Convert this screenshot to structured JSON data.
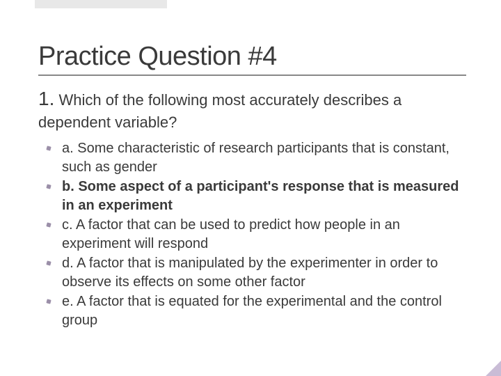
{
  "slide": {
    "title": "Practice Question #4",
    "question_number": "1.",
    "question_text": " Which of the following most accurately describes a dependent variable?",
    "options": [
      {
        "label": "a.",
        "text": " Some characteristic of research participants that is constant, such as gender",
        "bold": false
      },
      {
        "label": "b.",
        "text": " Some aspect of a participant's response that is measured in an experiment",
        "bold": true
      },
      {
        "label": "c.",
        "text": " A factor that can be used to predict how people in an experiment will respond",
        "bold": false
      },
      {
        "label": "d.",
        "text": " A factor that is manipulated by the experimenter in order to observe its effects on some other factor",
        "bold": false
      },
      {
        "label": "e.",
        "text": " A factor that is equated for the experimental and the control group",
        "bold": false
      }
    ]
  },
  "style": {
    "title_fontsize": 38,
    "question_fontsize": 22,
    "option_fontsize": 20,
    "text_color": "#3a3a3a",
    "underline_color": "#888888",
    "bullet_color": "#9b8fa8",
    "corner_accent_color": "#c9bcd6",
    "background_color": "#ffffff",
    "top_rect_color": "#e8e8e8"
  }
}
